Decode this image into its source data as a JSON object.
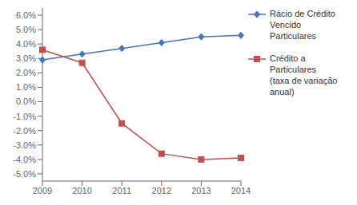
{
  "chart_data": {
    "type": "line",
    "categories": [
      "2009",
      "2010",
      "2011",
      "2012",
      "2013",
      "2014"
    ],
    "series": [
      {
        "name": "Rácio de Crédito\nVencido\nParticulares",
        "color": "#4472C4",
        "marker": "diamond",
        "values": [
          0.029,
          0.033,
          0.037,
          0.041,
          0.045,
          0.046
        ]
      },
      {
        "name": "Crédito a\nParticulares\n(taxa de variação\nanual)",
        "color": "#C0504D",
        "marker": "square",
        "values": [
          0.036,
          0.027,
          -0.015,
          -0.036,
          -0.04,
          -0.039
        ]
      }
    ],
    "ylim": [
      -0.055,
      0.065
    ],
    "yticks": [
      {
        "value": -0.05,
        "label": "-5.0%"
      },
      {
        "value": -0.04,
        "label": "-4.0%"
      },
      {
        "value": -0.03,
        "label": "-3.0%"
      },
      {
        "value": -0.02,
        "label": "-2.0%"
      },
      {
        "value": -0.01,
        "label": "-1.0%"
      },
      {
        "value": 0.0,
        "label": "0.0%"
      },
      {
        "value": 0.01,
        "label": "1.0%"
      },
      {
        "value": 0.02,
        "label": "2.0%"
      },
      {
        "value": 0.03,
        "label": "3.0%"
      },
      {
        "value": 0.04,
        "label": "4.0%"
      },
      {
        "value": 0.05,
        "label": "5.0%"
      },
      {
        "value": 0.06,
        "label": "6.0%"
      }
    ],
    "grid": false,
    "legend": "right"
  }
}
